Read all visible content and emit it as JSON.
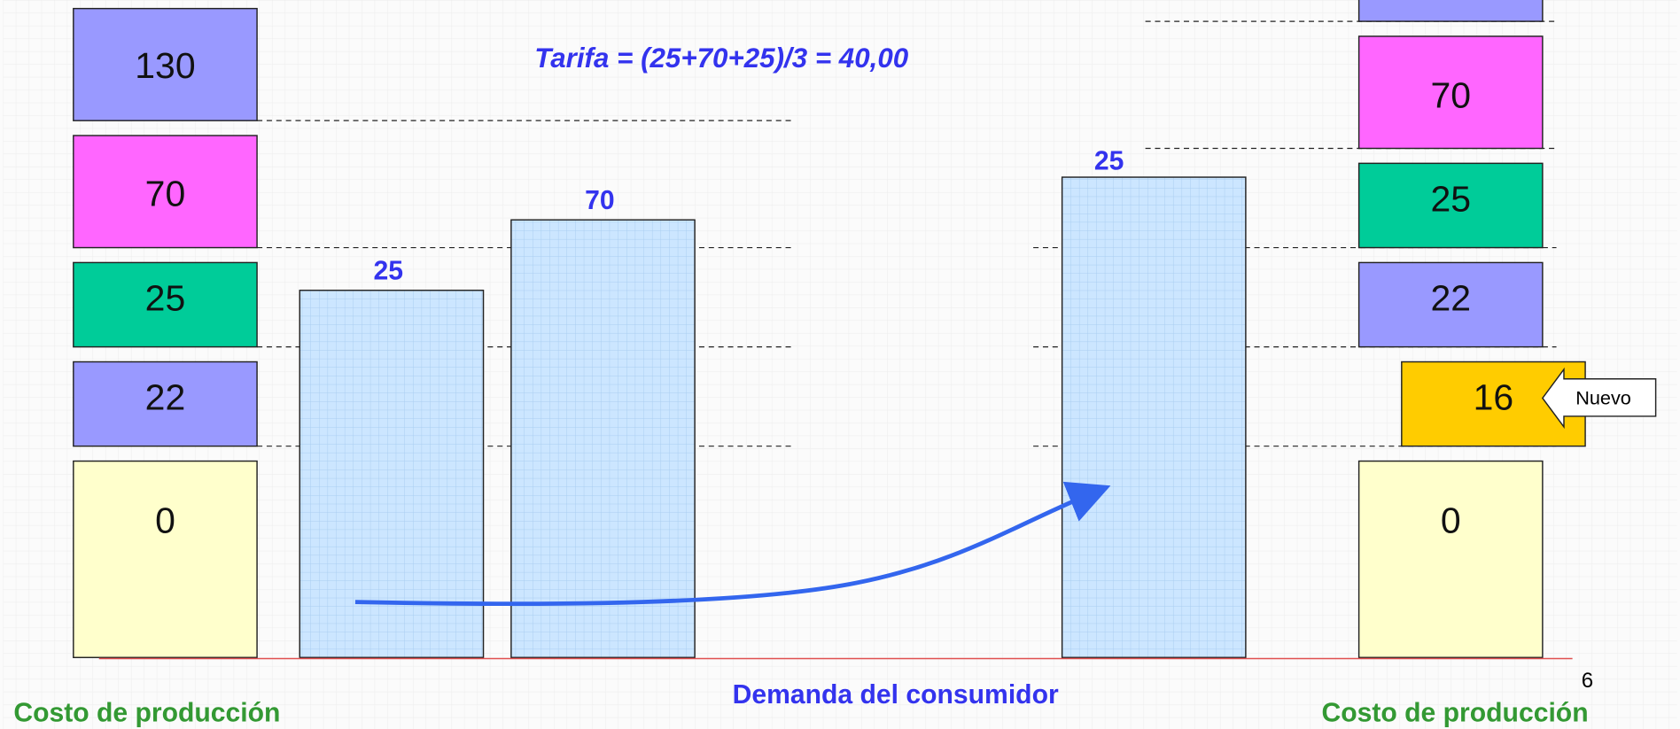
{
  "formula": "Tarifa = (25+70+25)/3 = 40,00",
  "left_stack": [
    "130",
    "70",
    "25",
    "22",
    "0"
  ],
  "right_stack": [
    "70",
    "25",
    "22",
    "16",
    "0"
  ],
  "new_label": "Nuevo",
  "bars": [
    "25",
    "70",
    "25"
  ],
  "axis_label": "Demanda del consumidor",
  "left_caption": "Costo de producción",
  "right_caption": "Costo de producción",
  "page_number": "6"
}
